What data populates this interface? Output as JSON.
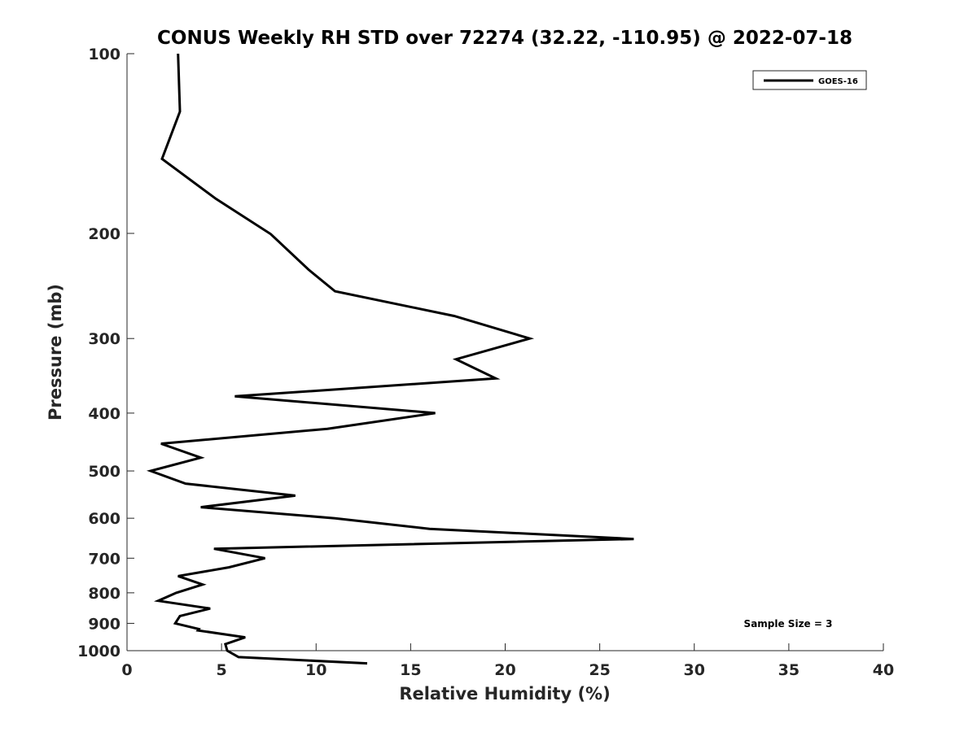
{
  "chart_data": {
    "type": "line",
    "title": "CONUS Weekly RH STD over 72274 (32.22, -110.95) @ 2022-07-18",
    "xlabel": "Relative Humidity (%)",
    "ylabel": "Pressure (mb)",
    "xlim": [
      0,
      40
    ],
    "ylim": [
      100,
      1000
    ],
    "yscale": "log",
    "yreversed": true,
    "xticks": [
      0,
      5,
      10,
      15,
      20,
      25,
      30,
      35,
      40
    ],
    "yticks": [
      100,
      200,
      300,
      400,
      500,
      600,
      700,
      800,
      900,
      1000
    ],
    "legend": {
      "location": "top-right"
    },
    "annotation": "Sample Size = 3",
    "grid": false,
    "series": [
      {
        "name": "GOES-16",
        "color": "#000000",
        "points": [
          [
            2.7,
            100
          ],
          [
            2.8,
            125
          ],
          [
            1.85,
            150
          ],
          [
            4.7,
            175
          ],
          [
            7.6,
            200.5
          ],
          [
            9.6,
            230
          ],
          [
            11.0,
            250
          ],
          [
            17.3,
            275
          ],
          [
            21.3,
            300
          ],
          [
            17.4,
            325
          ],
          [
            19.5,
            350
          ],
          [
            5.7,
            375
          ],
          [
            16.3,
            400
          ],
          [
            10.6,
            425
          ],
          [
            1.8,
            450
          ],
          [
            3.9,
            475
          ],
          [
            1.25,
            500
          ],
          [
            3.1,
            525
          ],
          [
            8.9,
            550
          ],
          [
            3.9,
            575
          ],
          [
            11.0,
            600
          ],
          [
            16.0,
            625
          ],
          [
            26.8,
            650
          ],
          [
            4.6,
            675
          ],
          [
            7.3,
            700
          ],
          [
            5.4,
            725
          ],
          [
            2.7,
            750
          ],
          [
            4.0,
            775
          ],
          [
            2.6,
            800
          ],
          [
            1.65,
            825
          ],
          [
            4.4,
            850
          ],
          [
            2.8,
            875
          ],
          [
            2.55,
            900
          ],
          [
            3.8,
            920
          ],
          [
            3.75,
            925
          ],
          [
            6.25,
            950
          ],
          [
            5.2,
            975
          ],
          [
            5.3,
            1000
          ],
          [
            5.9,
            1025
          ],
          [
            12.7,
            1050
          ]
        ]
      }
    ]
  }
}
